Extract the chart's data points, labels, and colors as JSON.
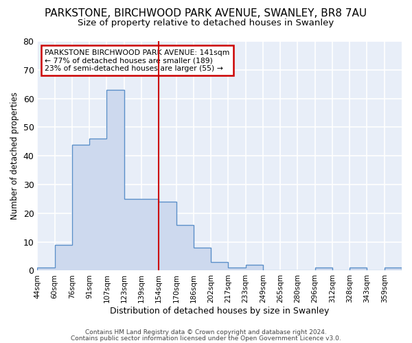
{
  "title1": "PARKSTONE, BIRCHWOOD PARK AVENUE, SWANLEY, BR8 7AU",
  "title2": "Size of property relative to detached houses in Swanley",
  "xlabel": "Distribution of detached houses by size in Swanley",
  "ylabel": "Number of detached properties",
  "bar_labels": [
    "44sqm",
    "60sqm",
    "76sqm",
    "91sqm",
    "107sqm",
    "123sqm",
    "139sqm",
    "154sqm",
    "170sqm",
    "186sqm",
    "202sqm",
    "217sqm",
    "233sqm",
    "249sqm",
    "265sqm",
    "280sqm",
    "296sqm",
    "312sqm",
    "328sqm",
    "343sqm",
    "359sqm"
  ],
  "bar_values": [
    1,
    9,
    44,
    46,
    63,
    25,
    25,
    24,
    16,
    8,
    3,
    1,
    2,
    0,
    0,
    0,
    1,
    0,
    1,
    0,
    1
  ],
  "bar_color": "#cdd9ee",
  "bar_edge_color": "#5b8fc9",
  "redline_index": 6,
  "annotation_title": "PARKSTONE BIRCHWOOD PARK AVENUE: 141sqm",
  "annotation_line1": "← 77% of detached houses are smaller (189)",
  "annotation_line2": "23% of semi-detached houses are larger (55) →",
  "annotation_box_color": "#ffffff",
  "annotation_box_edge": "#cc0000",
  "redline_color": "#cc0000",
  "footer1": "Contains HM Land Registry data © Crown copyright and database right 2024.",
  "footer2": "Contains public sector information licensed under the Open Government Licence v3.0.",
  "ylim": [
    0,
    80
  ],
  "yticks": [
    0,
    10,
    20,
    30,
    40,
    50,
    60,
    70,
    80
  ],
  "background_color": "#e8eef8",
  "grid_color": "#ffffff",
  "title1_fontsize": 11,
  "title2_fontsize": 9.5
}
